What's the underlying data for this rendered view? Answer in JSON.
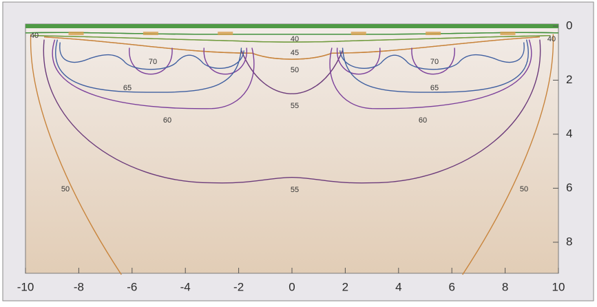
{
  "chart_data": {
    "type": "contour",
    "xlim": [
      -10,
      10
    ],
    "ylim": [
      9.2,
      0
    ],
    "xticks": [
      -10,
      -8,
      -6,
      -4,
      -2,
      0,
      2,
      4,
      6,
      8,
      10
    ],
    "yticks": [
      0,
      2,
      4,
      6,
      8
    ],
    "grid": false,
    "levels": [
      40,
      45,
      50,
      55,
      60,
      65,
      70
    ],
    "colors": [
      "#3f8f3a",
      "#6f9a3c",
      "#c8843c",
      "#6b3a7a",
      "#7b3f9a",
      "#3f5fa0",
      "#d2552e"
    ],
    "contour_labels": [
      40,
      40,
      40,
      45,
      50,
      70,
      70,
      65,
      65,
      55,
      60,
      60,
      55,
      50,
      50
    ]
  }
}
